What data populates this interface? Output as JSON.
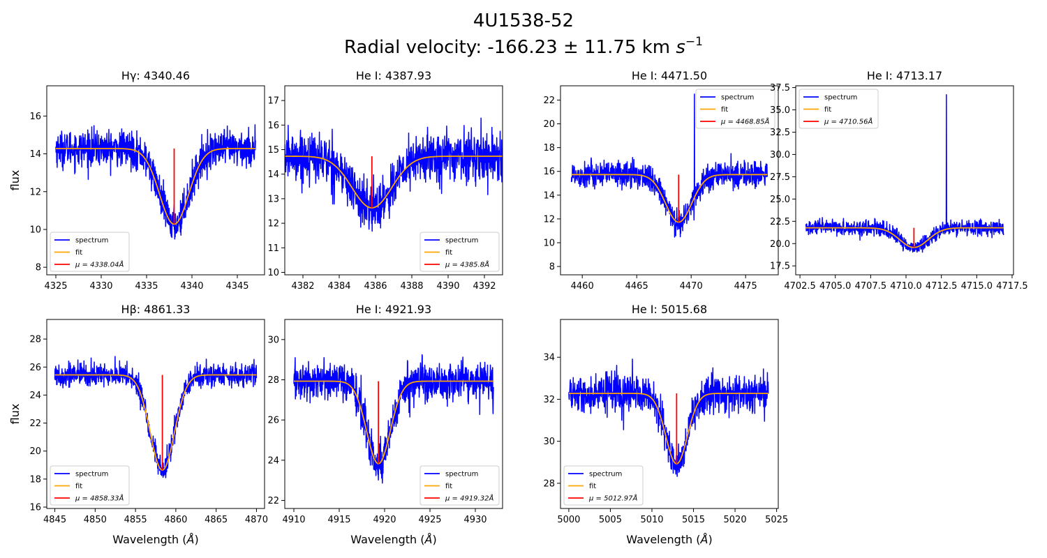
{
  "figure": {
    "title_line1": "4U1538-52",
    "title_line2_prefix": "Radial velocity: -166.23 ± 11.75 km ",
    "title_line2_unit_base": "s",
    "title_line2_unit_exp": "−1"
  },
  "axis_labels": {
    "ylabel": "flux",
    "xlabel_prefix": "Wavelength (",
    "xlabel_symbol": "Å",
    "xlabel_suffix": ")"
  },
  "legend_labels": {
    "spectrum": "spectrum",
    "fit": "fit"
  },
  "colors": {
    "spectrum": "#0000ff",
    "fit": "#ffa500",
    "center": "#ff0000"
  },
  "chart_data": [
    {
      "type": "line",
      "title": "Hγ: 4340.46",
      "xlim": [
        4324,
        4348
      ],
      "ylim": [
        7.6,
        17.6
      ],
      "xticks": [
        4325,
        4330,
        4335,
        4340,
        4345
      ],
      "yticks": [
        8,
        10,
        12,
        14,
        16
      ],
      "fit": {
        "continuum": 14.28,
        "depth": 4.0,
        "center": 4338.04,
        "sigma": 1.6,
        "x_range": [
          4325,
          4347
        ]
      },
      "noise": 0.85,
      "center_line": {
        "x": 4338.04,
        "y0": 10.28,
        "y1": 14.28
      },
      "mu_label": "μ = 4338.04Å",
      "legend": "lower-left",
      "series": [
        {
          "name": "spectrum"
        },
        {
          "name": "fit"
        },
        {
          "name": "μ = 4338.04Å"
        }
      ]
    },
    {
      "type": "line",
      "title": "He I: 4387.93",
      "xlim": [
        4381,
        4393
      ],
      "ylim": [
        9.9,
        17.6
      ],
      "xticks": [
        4382,
        4384,
        4386,
        4388,
        4390,
        4392
      ],
      "yticks": [
        10,
        11,
        12,
        13,
        14,
        15,
        16,
        17
      ],
      "fit": {
        "continuum": 14.73,
        "depth": 2.1,
        "center": 4385.8,
        "sigma": 1.1,
        "x_range": [
          4381,
          4393
        ]
      },
      "noise": 0.9,
      "center_line": {
        "x": 4385.8,
        "y0": 12.63,
        "y1": 14.73
      },
      "mu_label": "μ = 4385.8Å",
      "legend": "lower-right",
      "series": [
        {
          "name": "spectrum"
        },
        {
          "name": "fit"
        },
        {
          "name": "μ = 4385.8Å"
        }
      ]
    },
    {
      "type": "line",
      "title": "He I: 4471.50",
      "xlim": [
        4458,
        4478
      ],
      "ylim": [
        7.3,
        23.2
      ],
      "xticks": [
        4460,
        4465,
        4470,
        4475
      ],
      "yticks": [
        8,
        10,
        12,
        14,
        16,
        18,
        20,
        22
      ],
      "fit": {
        "continuum": 15.73,
        "depth": 4.0,
        "center": 4468.85,
        "sigma": 1.2,
        "x_range": [
          4459,
          4477
        ]
      },
      "noise": 1.0,
      "center_line": {
        "x": 4468.85,
        "y0": 11.73,
        "y1": 15.73
      },
      "spike": {
        "x": 4470.3,
        "y": 22.5
      },
      "mu_label": "μ = 4468.85Å",
      "legend": "upper-right",
      "series": [
        {
          "name": "spectrum"
        },
        {
          "name": "fit"
        },
        {
          "name": "μ = 4468.85Å"
        }
      ]
    },
    {
      "type": "line",
      "title": "He I: 4713.17",
      "xlim": [
        4702.2,
        4717.6
      ],
      "ylim": [
        16.5,
        37.7
      ],
      "xticks": [
        4702.5,
        4705.0,
        4707.5,
        4710.0,
        4712.5,
        4715.0,
        4717.5
      ],
      "xtick_labels": [
        "4702.5",
        "4705.0",
        "4707.5",
        "4710.0",
        "4712.5",
        "4715.0",
        "4717.5"
      ],
      "yticks": [
        17.5,
        20.0,
        22.5,
        25.0,
        27.5,
        30.0,
        32.5,
        35.0,
        37.5
      ],
      "ytick_labels": [
        "17.5",
        "20.0",
        "22.5",
        "25.0",
        "27.5",
        "30.0",
        "32.5",
        "35.0",
        "37.5"
      ],
      "fit": {
        "continuum": 21.77,
        "depth": 2.2,
        "center": 4710.56,
        "sigma": 1.0,
        "x_range": [
          4702.9,
          4716.9
        ]
      },
      "noise": 0.75,
      "center_line": {
        "x": 4710.56,
        "y0": 19.57,
        "y1": 21.77
      },
      "spike": {
        "x": 4712.85,
        "y": 36.7
      },
      "mu_label": "μ = 4710.56Å",
      "legend": "upper-left",
      "series": [
        {
          "name": "spectrum"
        },
        {
          "name": "fit"
        },
        {
          "name": "μ = 4710.56Å"
        }
      ]
    },
    {
      "type": "line",
      "title": "Hβ: 4861.33",
      "xlim": [
        4844,
        4871
      ],
      "ylim": [
        15.9,
        29.4
      ],
      "xticks": [
        4845,
        4850,
        4855,
        4860,
        4865,
        4870
      ],
      "yticks": [
        16,
        18,
        20,
        22,
        24,
        26,
        28
      ],
      "fit": {
        "continuum": 25.44,
        "depth": 6.8,
        "center": 4858.33,
        "sigma": 1.5,
        "x_range": [
          4845,
          4870
        ]
      },
      "noise": 0.75,
      "center_line": {
        "x": 4858.33,
        "y0": 18.64,
        "y1": 25.44
      },
      "mu_label": "μ = 4858.33Å",
      "legend": "lower-left",
      "series": [
        {
          "name": "spectrum"
        },
        {
          "name": "fit"
        },
        {
          "name": "μ = 4858.33Å"
        }
      ]
    },
    {
      "type": "line",
      "title": "He I: 4921.93",
      "xlim": [
        4909,
        4933
      ],
      "ylim": [
        21.6,
        31.0
      ],
      "xticks": [
        4910,
        4915,
        4920,
        4925,
        4930
      ],
      "yticks": [
        22,
        24,
        26,
        28,
        30
      ],
      "fit": {
        "continuum": 27.93,
        "depth": 4.1,
        "center": 4919.32,
        "sigma": 1.3,
        "x_range": [
          4910,
          4932
        ]
      },
      "noise": 0.85,
      "center_line": {
        "x": 4919.32,
        "y0": 23.83,
        "y1": 27.93
      },
      "mu_label": "μ = 4919.32Å",
      "legend": "lower-right",
      "series": [
        {
          "name": "spectrum"
        },
        {
          "name": "fit"
        },
        {
          "name": "μ = 4919.32Å"
        }
      ]
    },
    {
      "type": "line",
      "title": "He I: 5015.68",
      "xlim": [
        4999,
        5025.2
      ],
      "ylim": [
        26.8,
        35.8
      ],
      "xticks": [
        5000,
        5005,
        5010,
        5015,
        5020,
        5025
      ],
      "yticks": [
        28,
        30,
        32,
        34
      ],
      "fit": {
        "continuum": 32.28,
        "depth": 3.35,
        "center": 5012.97,
        "sigma": 1.3,
        "x_range": [
          5000,
          5024
        ]
      },
      "noise": 0.75,
      "center_line": {
        "x": 5012.97,
        "y0": 28.93,
        "y1": 32.28
      },
      "mu_label": "μ = 5012.97Å",
      "legend": "lower-left",
      "series": [
        {
          "name": "spectrum"
        },
        {
          "name": "fit"
        },
        {
          "name": "μ = 5012.97Å"
        }
      ]
    }
  ]
}
